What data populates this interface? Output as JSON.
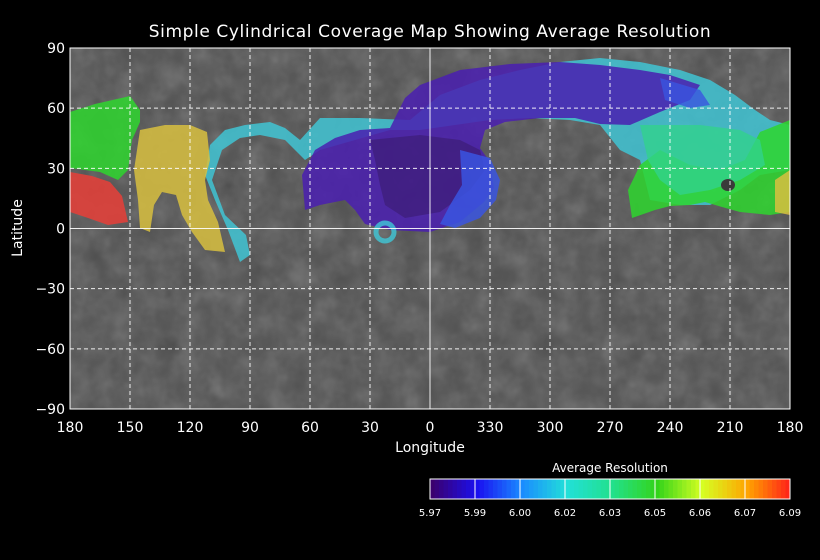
{
  "title": "Simple Cylindrical Coverage Map Showing Average Resolution",
  "xlabel": "Longitude",
  "ylabel": "Latitude",
  "x_ticks": [
    "180",
    "150",
    "120",
    "90",
    "60",
    "30",
    "0",
    "330",
    "300",
    "270",
    "240",
    "210",
    "180"
  ],
  "y_ticks": [
    "90",
    "60",
    "30",
    "0",
    "−30",
    "−60",
    "−90"
  ],
  "colorbar": {
    "title": "Average Resolution",
    "labels": [
      "5.97",
      "5.99",
      "6.00",
      "6.02",
      "6.03",
      "6.05",
      "6.06",
      "6.07",
      "6.09"
    ],
    "colors": [
      "#3b006e",
      "#1a10f0",
      "#1a8cff",
      "#22e0d8",
      "#22e08c",
      "#33d41a",
      "#d6ff22",
      "#ffa400",
      "#ff1a1a"
    ]
  },
  "colors": {
    "background": "#000000",
    "basemap": "#5a5a5a",
    "grid": "#ffffff",
    "cyan_cover": "#40c8d8",
    "purple_cover": "#4a1fb0",
    "blue_cover": "#3a55e0",
    "dark_purple_cover": "#3a1a70",
    "green_cover": "#2ed62e",
    "teal_cover": "#32d28c",
    "yellow_cover": "#d8c040",
    "red_cover": "#e0403a"
  }
}
